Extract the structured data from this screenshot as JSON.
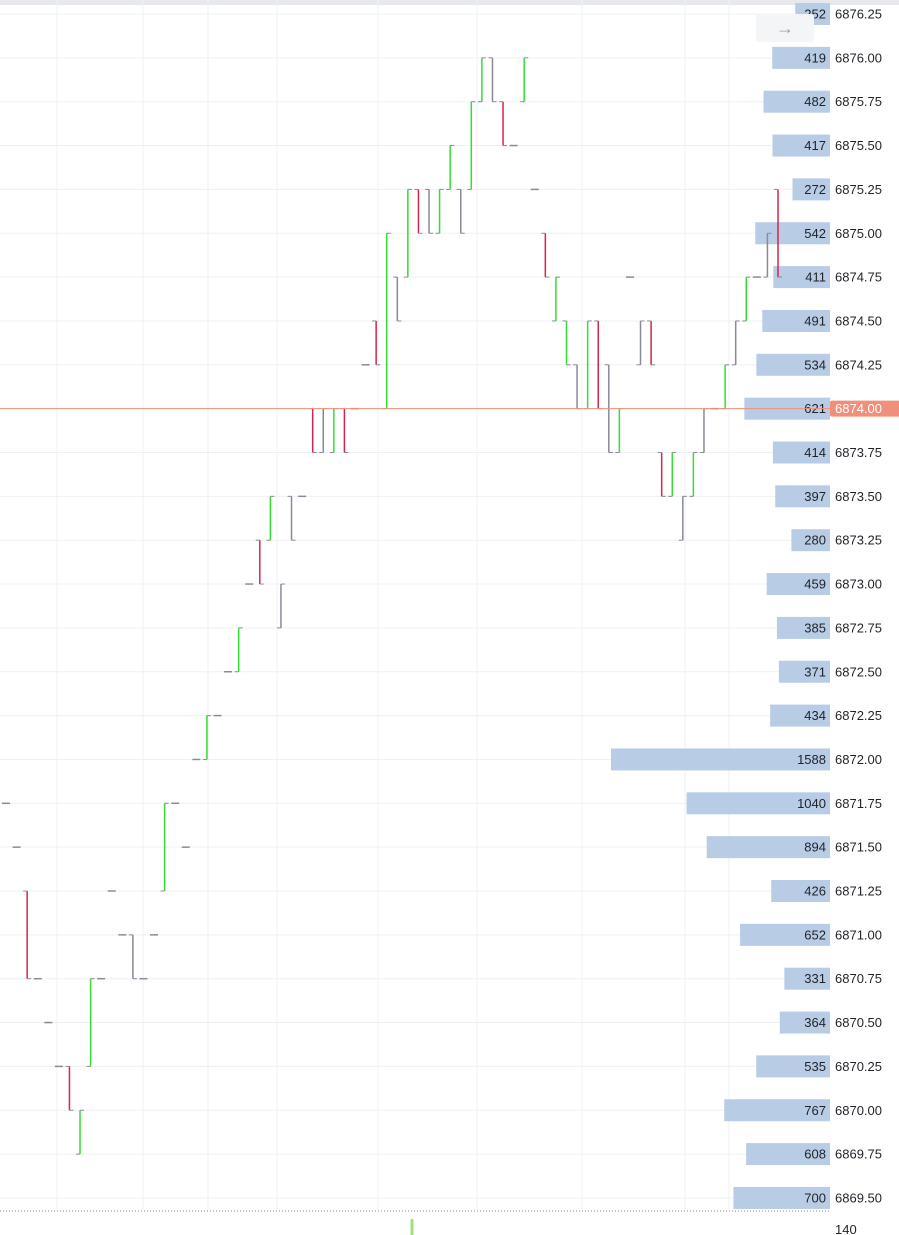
{
  "chart_data": {
    "type": "line",
    "price_axis": {
      "labels": [
        "6876.25",
        "6876.00",
        "6875.75",
        "6875.50",
        "6875.25",
        "6875.00",
        "6874.75",
        "6874.50",
        "6874.25",
        "6874.00",
        "6873.75",
        "6873.50",
        "6873.25",
        "6873.00",
        "6872.75",
        "6872.50",
        "6872.25",
        "6872.00",
        "6871.75",
        "6871.50",
        "6871.25",
        "6871.00",
        "6870.75",
        "6870.50",
        "6870.25",
        "6870.00",
        "6869.75",
        "6869.50"
      ],
      "ymin": 6869.5,
      "ymax": 6876.25,
      "tick": 0.25,
      "grid": true
    },
    "current_price": 6874.0,
    "current_price_label": "6874.00",
    "volume_profile": {
      "prices": [
        6876.25,
        6876.0,
        6875.75,
        6875.5,
        6875.25,
        6875.0,
        6874.75,
        6874.5,
        6874.25,
        6874.0,
        6873.75,
        6873.5,
        6873.25,
        6873.0,
        6872.75,
        6872.5,
        6872.25,
        6872.0,
        6871.75,
        6871.5,
        6871.25,
        6871.0,
        6870.75,
        6870.5,
        6870.25,
        6870.0,
        6869.75,
        6869.5
      ],
      "volumes": [
        252,
        419,
        482,
        417,
        272,
        542,
        411,
        491,
        534,
        621,
        414,
        397,
        280,
        459,
        385,
        371,
        434,
        1588,
        1040,
        894,
        426,
        652,
        331,
        364,
        535,
        767,
        608,
        700
      ],
      "max_volume": 1588
    },
    "bottom_value": "140",
    "colors": {
      "up": "#33dd33",
      "down": "#d6254a",
      "flat": "#8a8a96",
      "profile_bar": "#b8cce6",
      "current_price": "#f0907a",
      "grid": "#eef0f3"
    },
    "ticks": [
      {
        "p1": 6871.75,
        "p2": 6871.75,
        "c": "flat"
      },
      {
        "p1": 6871.5,
        "p2": 6871.5,
        "c": "flat"
      },
      {
        "p1": 6871.25,
        "p2": 6870.75,
        "c": "down"
      },
      {
        "p1": 6870.75,
        "p2": 6870.75,
        "c": "flat"
      },
      {
        "p1": 6870.5,
        "p2": 6870.5,
        "c": "flat"
      },
      {
        "p1": 6870.25,
        "p2": 6870.25,
        "c": "flat"
      },
      {
        "p1": 6870.25,
        "p2": 6870.0,
        "c": "down"
      },
      {
        "p1": 6869.75,
        "p2": 6870.0,
        "c": "up"
      },
      {
        "p1": 6870.25,
        "p2": 6870.75,
        "c": "up"
      },
      {
        "p1": 6870.75,
        "p2": 6870.75,
        "c": "flat"
      },
      {
        "p1": 6871.25,
        "p2": 6871.25,
        "c": "flat"
      },
      {
        "p1": 6871.0,
        "p2": 6871.0,
        "c": "flat"
      },
      {
        "p1": 6871.0,
        "p2": 6870.75,
        "c": "flat"
      },
      {
        "p1": 6870.75,
        "p2": 6870.75,
        "c": "flat"
      },
      {
        "p1": 6871.0,
        "p2": 6871.0,
        "c": "flat"
      },
      {
        "p1": 6871.25,
        "p2": 6871.75,
        "c": "up"
      },
      {
        "p1": 6871.75,
        "p2": 6871.75,
        "c": "flat"
      },
      {
        "p1": 6871.5,
        "p2": 6871.5,
        "c": "flat"
      },
      {
        "p1": 6872.0,
        "p2": 6872.0,
        "c": "flat"
      },
      {
        "p1": 6872.0,
        "p2": 6872.25,
        "c": "up"
      },
      {
        "p1": 6872.25,
        "p2": 6872.25,
        "c": "flat"
      },
      {
        "p1": 6872.5,
        "p2": 6872.5,
        "c": "flat"
      },
      {
        "p1": 6872.5,
        "p2": 6872.75,
        "c": "up"
      },
      {
        "p1": 6873.0,
        "p2": 6873.0,
        "c": "flat"
      },
      {
        "p1": 6873.25,
        "p2": 6873.0,
        "c": "down"
      },
      {
        "p1": 6873.25,
        "p2": 6873.5,
        "c": "up"
      },
      {
        "p1": 6872.75,
        "p2": 6873.0,
        "c": "flat"
      },
      {
        "p1": 6873.5,
        "p2": 6873.25,
        "c": "flat"
      },
      {
        "p1": 6873.5,
        "p2": 6873.5,
        "c": "flat"
      },
      {
        "p1": 6874.0,
        "p2": 6873.75,
        "c": "down"
      },
      {
        "p1": 6873.75,
        "p2": 6874.0,
        "c": "flat"
      },
      {
        "p1": 6873.75,
        "p2": 6874.0,
        "c": "up"
      },
      {
        "p1": 6874.0,
        "p2": 6873.75,
        "c": "down"
      },
      {
        "p1": 6874.0,
        "p2": 6874.0,
        "c": "flat"
      },
      {
        "p1": 6874.25,
        "p2": 6874.25,
        "c": "flat"
      },
      {
        "p1": 6874.5,
        "p2": 6874.25,
        "c": "down"
      },
      {
        "p1": 6874.0,
        "p2": 6875.0,
        "c": "up"
      },
      {
        "p1": 6874.75,
        "p2": 6874.5,
        "c": "flat"
      },
      {
        "p1": 6874.75,
        "p2": 6875.25,
        "c": "up"
      },
      {
        "p1": 6875.25,
        "p2": 6875.0,
        "c": "down"
      },
      {
        "p1": 6875.25,
        "p2": 6875.0,
        "c": "flat"
      },
      {
        "p1": 6875.0,
        "p2": 6875.25,
        "c": "up"
      },
      {
        "p1": 6875.25,
        "p2": 6875.5,
        "c": "up"
      },
      {
        "p1": 6875.25,
        "p2": 6875.0,
        "c": "flat"
      },
      {
        "p1": 6875.25,
        "p2": 6875.75,
        "c": "up"
      },
      {
        "p1": 6875.75,
        "p2": 6876.0,
        "c": "up"
      },
      {
        "p1": 6876.0,
        "p2": 6875.75,
        "c": "flat"
      },
      {
        "p1": 6875.75,
        "p2": 6875.5,
        "c": "down"
      },
      {
        "p1": 6875.5,
        "p2": 6875.5,
        "c": "flat"
      },
      {
        "p1": 6875.75,
        "p2": 6876.0,
        "c": "up"
      },
      {
        "p1": 6875.25,
        "p2": 6875.25,
        "c": "flat"
      },
      {
        "p1": 6875.0,
        "p2": 6874.75,
        "c": "down"
      },
      {
        "p1": 6874.5,
        "p2": 6874.75,
        "c": "up"
      },
      {
        "p1": 6874.5,
        "p2": 6874.25,
        "c": "up"
      },
      {
        "p1": 6874.25,
        "p2": 6874.0,
        "c": "flat"
      },
      {
        "p1": 6874.0,
        "p2": 6874.5,
        "c": "up"
      },
      {
        "p1": 6874.5,
        "p2": 6874.0,
        "c": "down"
      },
      {
        "p1": 6874.25,
        "p2": 6873.75,
        "c": "flat"
      },
      {
        "p1": 6873.75,
        "p2": 6874.0,
        "c": "up"
      },
      {
        "p1": 6874.75,
        "p2": 6874.75,
        "c": "flat"
      },
      {
        "p1": 6874.25,
        "p2": 6874.5,
        "c": "flat"
      },
      {
        "p1": 6874.5,
        "p2": 6874.25,
        "c": "down"
      },
      {
        "p1": 6873.75,
        "p2": 6873.5,
        "c": "down"
      },
      {
        "p1": 6873.5,
        "p2": 6873.75,
        "c": "up"
      },
      {
        "p1": 6873.25,
        "p2": 6873.5,
        "c": "flat"
      },
      {
        "p1": 6873.5,
        "p2": 6873.75,
        "c": "up"
      },
      {
        "p1": 6873.75,
        "p2": 6874.0,
        "c": "flat"
      },
      {
        "p1": 6874.0,
        "p2": 6874.0,
        "c": "flat"
      },
      {
        "p1": 6874.0,
        "p2": 6874.25,
        "c": "up"
      },
      {
        "p1": 6874.25,
        "p2": 6874.5,
        "c": "flat"
      },
      {
        "p1": 6874.5,
        "p2": 6874.75,
        "c": "up"
      },
      {
        "p1": 6874.75,
        "p2": 6874.75,
        "c": "flat"
      },
      {
        "p1": 6874.75,
        "p2": 6875.0,
        "c": "flat"
      },
      {
        "p1": 6875.25,
        "p2": 6874.75,
        "c": "down"
      }
    ]
  }
}
